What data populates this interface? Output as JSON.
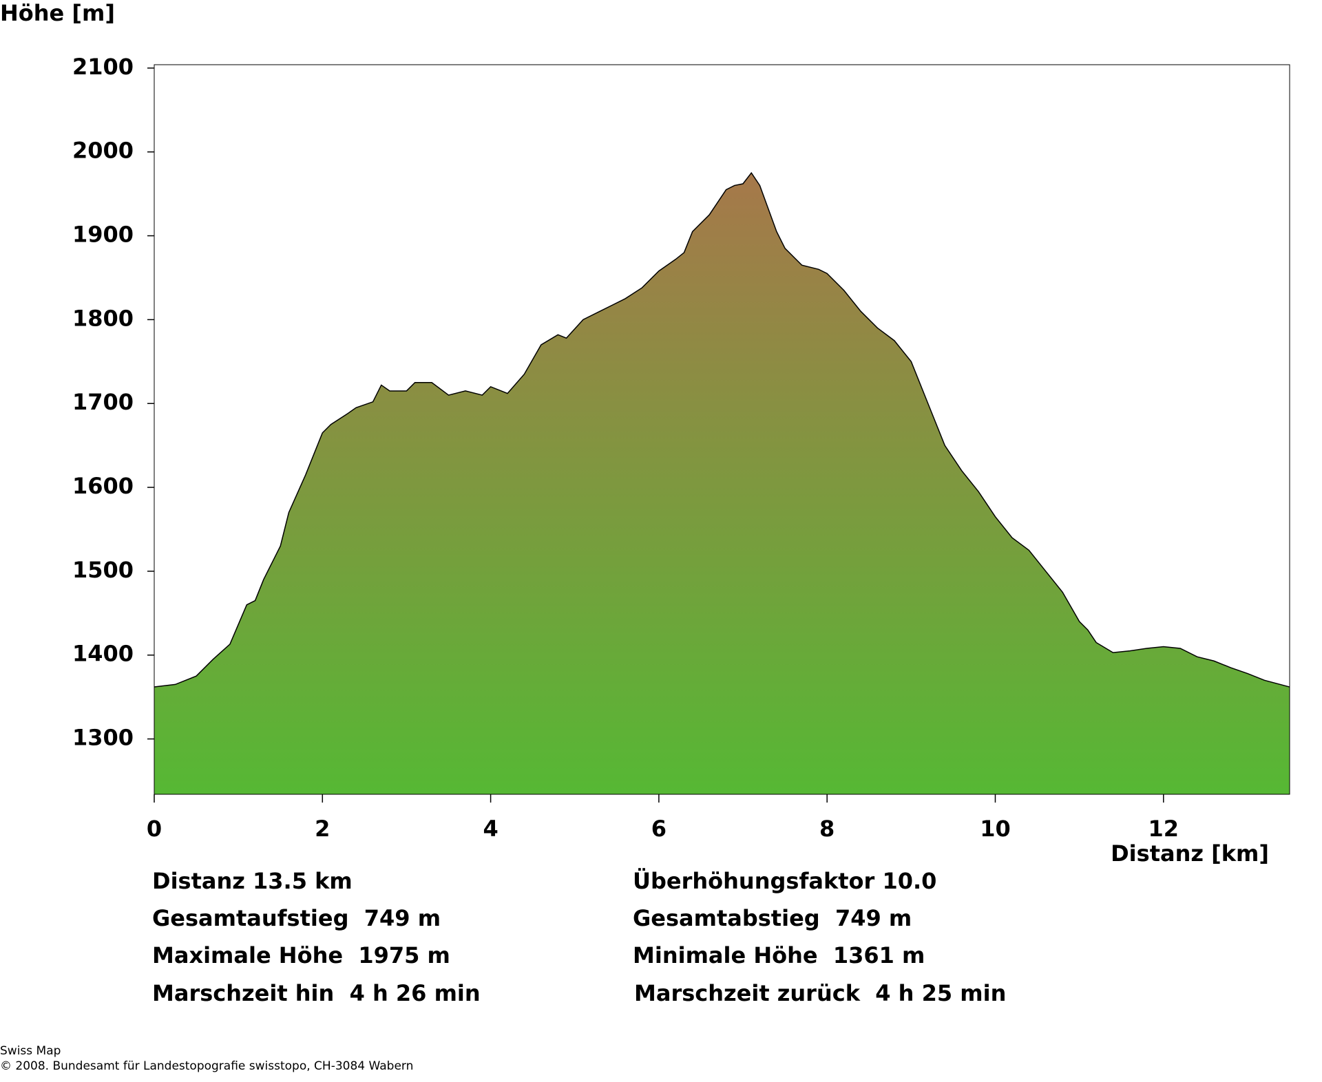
{
  "chart_data": {
    "type": "area",
    "ylabel": "Höhe [m]",
    "xlabel": "Distanz [km]",
    "x": [
      0,
      0.25,
      0.5,
      0.7,
      0.9,
      1.1,
      1.2,
      1.3,
      1.5,
      1.6,
      1.8,
      2.0,
      2.1,
      2.3,
      2.4,
      2.6,
      2.7,
      2.8,
      3.0,
      3.1,
      3.3,
      3.5,
      3.7,
      3.9,
      4.0,
      4.2,
      4.4,
      4.6,
      4.8,
      4.9,
      5.1,
      5.3,
      5.6,
      5.8,
      6.0,
      6.2,
      6.3,
      6.4,
      6.6,
      6.8,
      6.9,
      7.0,
      7.1,
      7.2,
      7.4,
      7.5,
      7.7,
      7.9,
      8.0,
      8.2,
      8.4,
      8.6,
      8.8,
      9.0,
      9.2,
      9.4,
      9.6,
      9.8,
      10.0,
      10.2,
      10.4,
      10.6,
      10.8,
      11.0,
      11.1,
      11.2,
      11.4,
      11.6,
      11.8,
      12.0,
      12.2,
      12.4,
      12.6,
      12.8,
      13.0,
      13.2,
      13.5
    ],
    "series": [
      {
        "name": null,
        "values": [
          1362,
          1365,
          1375,
          1395,
          1413,
          1460,
          1465,
          1490,
          1530,
          1570,
          1615,
          1665,
          1675,
          1688,
          1695,
          1702,
          1722,
          1715,
          1715,
          1725,
          1725,
          1710,
          1715,
          1710,
          1720,
          1712,
          1735,
          1770,
          1782,
          1778,
          1800,
          1810,
          1825,
          1838,
          1858,
          1872,
          1880,
          1905,
          1925,
          1955,
          1960,
          1962,
          1975,
          1960,
          1905,
          1885,
          1865,
          1860,
          1855,
          1835,
          1810,
          1790,
          1775,
          1750,
          1700,
          1650,
          1620,
          1595,
          1565,
          1540,
          1525,
          1500,
          1475,
          1440,
          1430,
          1415,
          1403,
          1405,
          1408,
          1410,
          1408,
          1398,
          1393,
          1385,
          1378,
          1370,
          1362
        ]
      }
    ],
    "gradient": [
      "#a6784a",
      "#56b834"
    ],
    "line_color": "#000000",
    "xlim": [
      0,
      13.5
    ],
    "xticks": [
      0,
      2,
      4,
      6,
      8,
      10,
      12
    ],
    "ylim": [
      1234,
      2104
    ],
    "yticks": [
      1300,
      1400,
      1500,
      1600,
      1700,
      1800,
      1900,
      2000,
      2100
    ],
    "stats": {
      "left": [
        "Distanz 13.5 km",
        "Gesamtaufstieg  749 m",
        "Maximale Höhe  1975 m",
        "Marschzeit hin  4 h 26 min"
      ],
      "right": [
        "Überhöhungsfaktor 10.0",
        "Gesamtabstieg  749 m",
        "Minimale Höhe  1361 m",
        "Marschzeit zurück  4 h 25 min"
      ]
    },
    "footer": [
      "Swiss Map",
      "© 2008. Bundesamt für Landestopografie swisstopo, CH-3084 Wabern"
    ]
  }
}
